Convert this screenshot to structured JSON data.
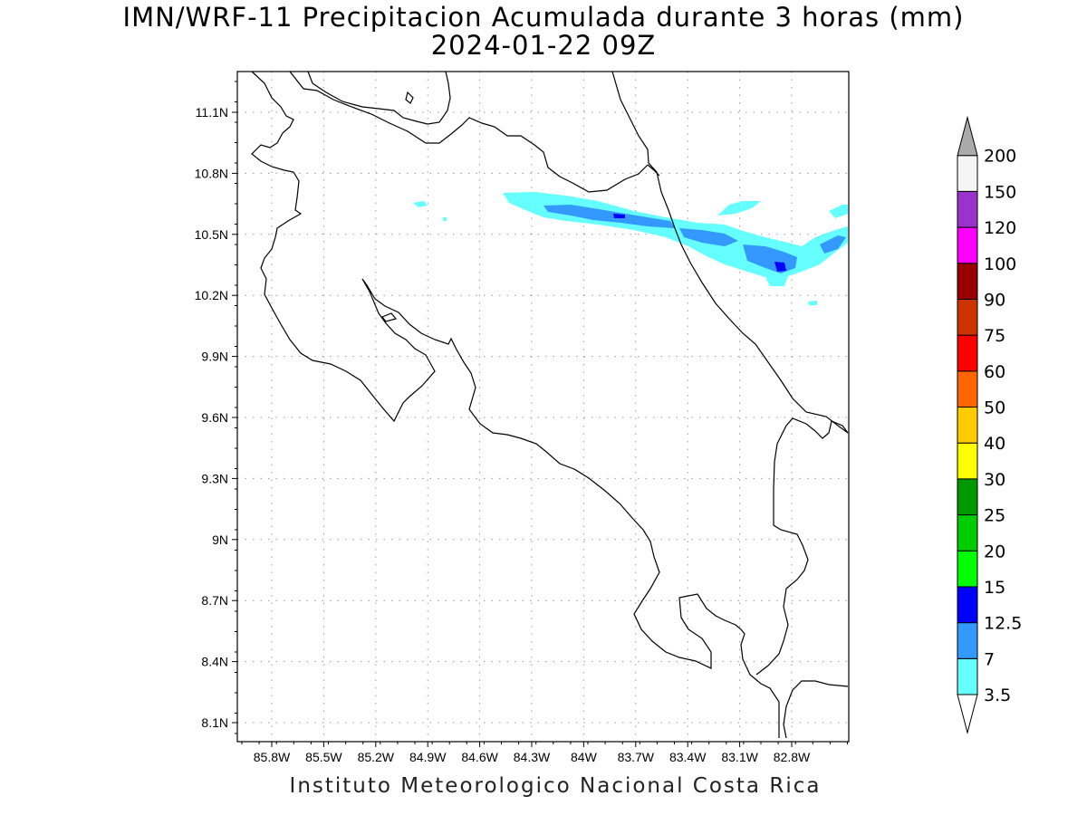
{
  "title_line1": "IMN/WRF-11 Precipitacion Acumulada durante 3 horas (mm)",
  "title_line2": "2024-01-22 09Z",
  "footer": "Instituto Meteorologico Nacional Costa Rica",
  "map": {
    "lon_range": [
      -86.2,
      -82.5
    ],
    "lat_range": [
      8.0,
      11.3
    ],
    "x_tick_labels": [
      "85.8W",
      "85.5W",
      "85.2W",
      "84.9W",
      "84.6W",
      "84.3W",
      "84W",
      "83.7W",
      "83.4W",
      "83.1W",
      "82.8W"
    ],
    "y_tick_labels": [
      "11.1N",
      "10.8N",
      "10.5N",
      "10.2N",
      "9.9N",
      "9.6N",
      "9.3N",
      "9N",
      "8.7N",
      "8.4N",
      "8.1N"
    ],
    "grid": true,
    "precip_band_colors": [
      "#66ffff",
      "#3399ff",
      "#0000ff"
    ]
  },
  "colorbar": {
    "labels": [
      "3.5",
      "7",
      "12.5",
      "15",
      "20",
      "25",
      "30",
      "40",
      "50",
      "60",
      "75",
      "90",
      "100",
      "120",
      "150",
      "200"
    ],
    "colors": [
      "#66ffff",
      "#3399ff",
      "#0000ff",
      "#00ff00",
      "#00cc00",
      "#009900",
      "#ffff00",
      "#ffcc00",
      "#ff6600",
      "#ff0000",
      "#cc3300",
      "#990000",
      "#ff00ff",
      "#9933cc",
      "#f5f5f5",
      "#aaaaaa"
    ]
  }
}
